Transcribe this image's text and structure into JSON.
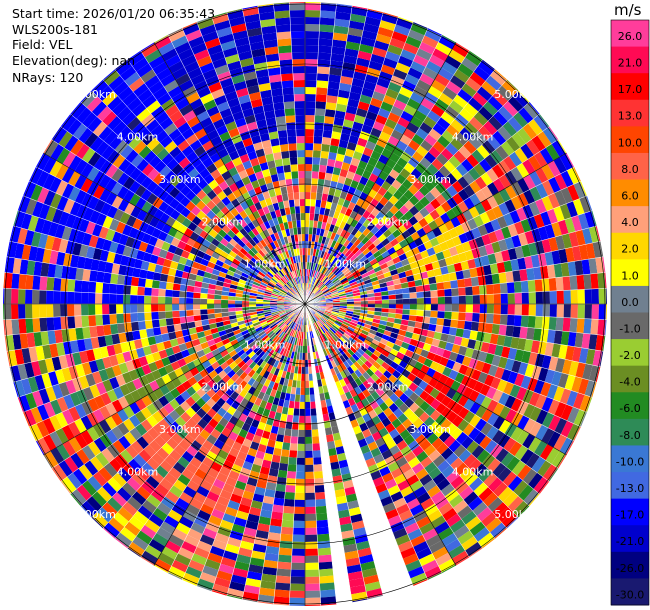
{
  "info": {
    "start_time": "Start time: 2026/01/20 06:35:43",
    "instrument": "WLS200s-181",
    "field": "Field: VEL",
    "elevation": "Elevation(deg): nan",
    "nrays": "NRays: 120"
  },
  "chart_data": {
    "type": "heatmap",
    "projection": "polar-ppi",
    "field": "VEL",
    "n_rays": 120,
    "missing_sectors_deg": [
      [
        160,
        166
      ],
      [
        170,
        175
      ]
    ],
    "grid": true,
    "range_rings_km": [
      1,
      2,
      3,
      4,
      5
    ],
    "range_labels": [
      "1.00km",
      "2.00km",
      "3.00km",
      "4.00km",
      "5.00km"
    ],
    "colorbar": {
      "unit": "m/s",
      "placement": "right",
      "ticks": [
        "26.0",
        "21.0",
        "17.0",
        "13.0",
        "10.0",
        "8.0",
        "6.0",
        "4.0",
        "2.0",
        "1.0",
        "0.0",
        "-1.0",
        "-2.0",
        "-4.0",
        "-6.0",
        "-8.0",
        "-10.0",
        "-13.0",
        "-17.0",
        "-21.0",
        "-26.0",
        "-30.0"
      ],
      "colors": [
        "#ff3d9b",
        "#ff0a54",
        "#ff0000",
        "#ff3333",
        "#ff4500",
        "#ff6347",
        "#ff8c00",
        "#ffa07a",
        "#ffd700",
        "#ffff00",
        "#708090",
        "#696969",
        "#9acd32",
        "#6b8e23",
        "#228b22",
        "#2e8b57",
        "#3a78d4",
        "#4169e1",
        "#0000ff",
        "#0000cd",
        "#000080",
        "#191970"
      ]
    }
  }
}
